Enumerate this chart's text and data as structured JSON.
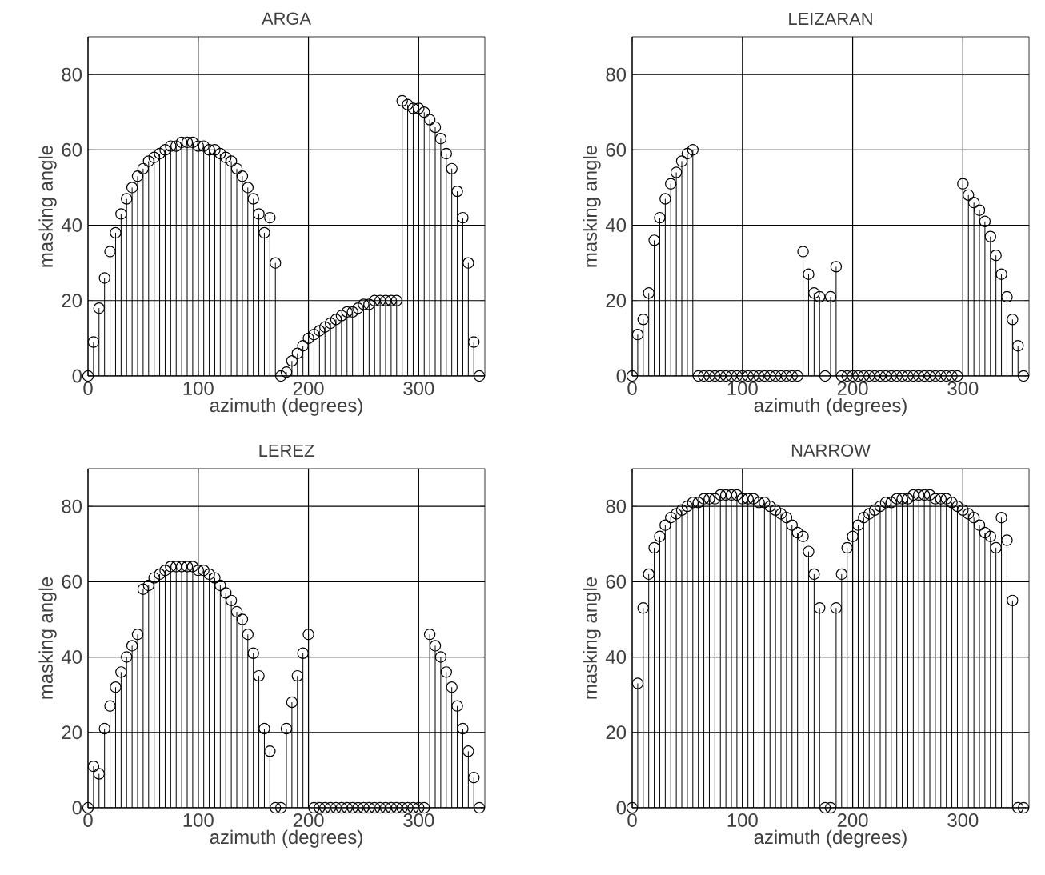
{
  "chart_data": [
    {
      "type": "lollipop",
      "title": "ARGA",
      "xlabel": "azimuth (degrees)",
      "ylabel": "masking angle",
      "xlim": [
        0,
        360
      ],
      "xticks": [
        0,
        100,
        200,
        300
      ],
      "ylim": [
        0,
        90
      ],
      "yticks": [
        0,
        20,
        40,
        60,
        80
      ],
      "grid": true,
      "marker": "circle",
      "color": "#000000",
      "x": [
        0,
        5,
        10,
        15,
        20,
        25,
        30,
        35,
        40,
        45,
        50,
        55,
        60,
        65,
        70,
        75,
        80,
        85,
        90,
        95,
        100,
        105,
        110,
        115,
        120,
        125,
        130,
        135,
        140,
        145,
        150,
        155,
        160,
        165,
        170,
        175,
        180,
        185,
        190,
        195,
        200,
        205,
        210,
        215,
        220,
        225,
        230,
        235,
        240,
        245,
        250,
        255,
        260,
        265,
        270,
        275,
        280,
        285,
        290,
        295,
        300,
        305,
        310,
        315,
        320,
        325,
        330,
        335,
        340,
        345,
        350,
        355
      ],
      "values": [
        0,
        9,
        18,
        26,
        33,
        38,
        43,
        47,
        50,
        53,
        55,
        57,
        58,
        59,
        60,
        61,
        61,
        62,
        62,
        62,
        61,
        61,
        60,
        60,
        59,
        58,
        57,
        55,
        53,
        50,
        47,
        43,
        38,
        42,
        30,
        0,
        1,
        4,
        6,
        8,
        10,
        11,
        12,
        13,
        14,
        15,
        16,
        17,
        17,
        18,
        19,
        19,
        20,
        20,
        20,
        20,
        20,
        73,
        72,
        71,
        71,
        70,
        68,
        66,
        63,
        59,
        55,
        49,
        42,
        30,
        9,
        0
      ]
    },
    {
      "type": "lollipop",
      "title": "LEIZARAN",
      "xlabel": "azimuth (degrees)",
      "ylabel": "masking angle",
      "xlim": [
        0,
        360
      ],
      "xticks": [
        0,
        100,
        200,
        300
      ],
      "ylim": [
        0,
        90
      ],
      "yticks": [
        0,
        20,
        40,
        60,
        80
      ],
      "grid": true,
      "marker": "circle",
      "color": "#000000",
      "x": [
        0,
        5,
        10,
        15,
        20,
        25,
        30,
        35,
        40,
        45,
        50,
        55,
        60,
        65,
        70,
        75,
        80,
        85,
        90,
        95,
        100,
        105,
        110,
        115,
        120,
        125,
        130,
        135,
        140,
        145,
        150,
        155,
        160,
        165,
        170,
        175,
        180,
        185,
        190,
        195,
        200,
        205,
        210,
        215,
        220,
        225,
        230,
        235,
        240,
        245,
        250,
        255,
        260,
        265,
        270,
        275,
        280,
        285,
        290,
        295,
        300,
        305,
        310,
        315,
        320,
        325,
        330,
        335,
        340,
        345,
        350,
        355
      ],
      "values": [
        0,
        11,
        15,
        22,
        36,
        42,
        47,
        51,
        54,
        57,
        59,
        60,
        0,
        0,
        0,
        0,
        0,
        0,
        0,
        0,
        0,
        0,
        0,
        0,
        0,
        0,
        0,
        0,
        0,
        0,
        0,
        33,
        27,
        22,
        21,
        0,
        21,
        29,
        0,
        0,
        0,
        0,
        0,
        0,
        0,
        0,
        0,
        0,
        0,
        0,
        0,
        0,
        0,
        0,
        0,
        0,
        0,
        0,
        0,
        0,
        51,
        48,
        46,
        44,
        41,
        37,
        32,
        27,
        21,
        15,
        8,
        0
      ]
    },
    {
      "type": "lollipop",
      "title": "LEREZ",
      "xlabel": "azimuth (degrees)",
      "ylabel": "masking angle",
      "xlim": [
        0,
        360
      ],
      "xticks": [
        0,
        100,
        200,
        300
      ],
      "ylim": [
        0,
        90
      ],
      "yticks": [
        0,
        20,
        40,
        60,
        80
      ],
      "grid": true,
      "marker": "circle",
      "color": "#000000",
      "x": [
        0,
        5,
        10,
        15,
        20,
        25,
        30,
        35,
        40,
        45,
        50,
        55,
        60,
        65,
        70,
        75,
        80,
        85,
        90,
        95,
        100,
        105,
        110,
        115,
        120,
        125,
        130,
        135,
        140,
        145,
        150,
        155,
        160,
        165,
        170,
        175,
        180,
        185,
        190,
        195,
        200,
        205,
        210,
        215,
        220,
        225,
        230,
        235,
        240,
        245,
        250,
        255,
        260,
        265,
        270,
        275,
        280,
        285,
        290,
        295,
        300,
        305,
        310,
        315,
        320,
        325,
        330,
        335,
        340,
        345,
        350,
        355
      ],
      "values": [
        0,
        11,
        9,
        21,
        27,
        32,
        36,
        40,
        43,
        46,
        58,
        59,
        61,
        62,
        63,
        64,
        64,
        64,
        64,
        64,
        63,
        63,
        62,
        61,
        59,
        57,
        55,
        52,
        50,
        46,
        41,
        35,
        21,
        15,
        0,
        0,
        21,
        28,
        35,
        41,
        46,
        0,
        0,
        0,
        0,
        0,
        0,
        0,
        0,
        0,
        0,
        0,
        0,
        0,
        0,
        0,
        0,
        0,
        0,
        0,
        0,
        0,
        46,
        43,
        40,
        36,
        32,
        27,
        21,
        15,
        8,
        0
      ]
    },
    {
      "type": "lollipop",
      "title": "NARROW",
      "xlabel": "azimuth (degrees)",
      "ylabel": "masking angle",
      "xlim": [
        0,
        360
      ],
      "xticks": [
        0,
        100,
        200,
        300
      ],
      "ylim": [
        0,
        90
      ],
      "yticks": [
        0,
        20,
        40,
        60,
        80
      ],
      "grid": true,
      "marker": "circle",
      "color": "#000000",
      "x": [
        0,
        5,
        10,
        15,
        20,
        25,
        30,
        35,
        40,
        45,
        50,
        55,
        60,
        65,
        70,
        75,
        80,
        85,
        90,
        95,
        100,
        105,
        110,
        115,
        120,
        125,
        130,
        135,
        140,
        145,
        150,
        155,
        160,
        165,
        170,
        175,
        180,
        185,
        190,
        195,
        200,
        205,
        210,
        215,
        220,
        225,
        230,
        235,
        240,
        245,
        250,
        255,
        260,
        265,
        270,
        275,
        280,
        285,
        290,
        295,
        300,
        305,
        310,
        315,
        320,
        325,
        330,
        335,
        340,
        345,
        350,
        355
      ],
      "values": [
        0,
        33,
        53,
        62,
        69,
        72,
        75,
        77,
        78,
        79,
        80,
        81,
        81,
        82,
        82,
        82,
        83,
        83,
        83,
        83,
        82,
        82,
        82,
        81,
        81,
        80,
        79,
        78,
        77,
        75,
        73,
        72,
        68,
        62,
        53,
        0,
        0,
        53,
        62,
        69,
        72,
        75,
        77,
        78,
        79,
        80,
        81,
        81,
        82,
        82,
        82,
        83,
        83,
        83,
        83,
        82,
        82,
        82,
        81,
        80,
        79,
        78,
        77,
        75,
        73,
        72,
        69,
        77,
        71,
        55,
        0,
        0
      ]
    }
  ]
}
